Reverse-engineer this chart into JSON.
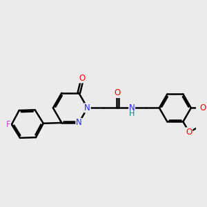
{
  "background_color": "#ebebeb",
  "bond_color": "#000000",
  "bond_width": 1.8,
  "font_size": 8.5,
  "atom_colors": {
    "N": "#2222ff",
    "O": "#ff0000",
    "F": "#cc44cc",
    "H": "#008888"
  },
  "figsize": [
    3.0,
    3.0
  ],
  "dpi": 100
}
